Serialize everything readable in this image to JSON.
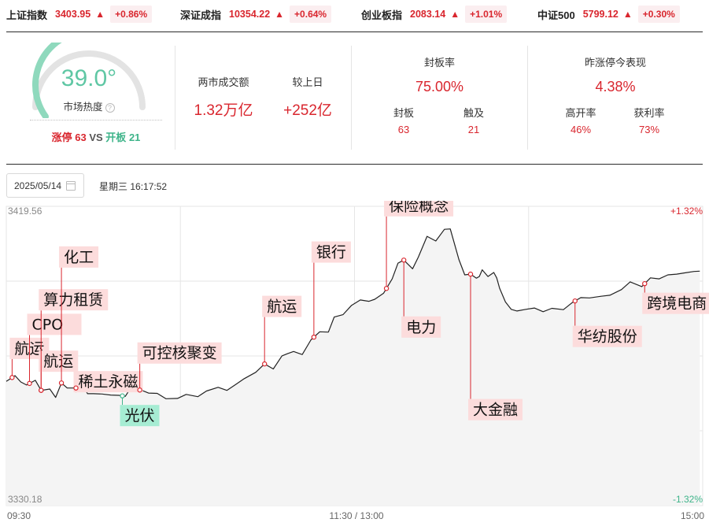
{
  "indices": [
    {
      "name": "上证指数",
      "price": "3403.95",
      "arrow": "▲",
      "change": "+0.86%"
    },
    {
      "name": "深证成指",
      "price": "10354.22",
      "arrow": "▲",
      "change": "+0.64%"
    },
    {
      "name": "创业板指",
      "price": "2083.14",
      "arrow": "▲",
      "change": "+1.01%"
    },
    {
      "name": "中证500",
      "price": "5799.12",
      "arrow": "▲",
      "change": "+0.30%"
    }
  ],
  "heat": {
    "value": "39.0°",
    "label": "市场热度",
    "info_icon": "?",
    "gauge_fraction": 0.39,
    "limit_up_label": "涨停",
    "limit_up_count": "63",
    "vs": "VS",
    "opened_label": "开板",
    "opened_count": "21"
  },
  "turnover": {
    "label": "两市成交额",
    "value": "1.32万亿",
    "diff_label": "较上日",
    "diff_value": "+252亿"
  },
  "seal_rate": {
    "label": "封板率",
    "value": "75.00%",
    "sealed_label": "封板",
    "sealed_value": "63",
    "touched_label": "触及",
    "touched_value": "21"
  },
  "yesterday_limit": {
    "label": "昨涨停今表现",
    "value": "4.38%",
    "high_open_label": "高开率",
    "high_open_value": "46%",
    "profit_label": "获利率",
    "profit_value": "73%"
  },
  "date_bar": {
    "date": "2025/05/14",
    "calendar_icon": "calendar-icon",
    "weekday": "星期三",
    "time": "16:17:52"
  },
  "colors": {
    "up": "#d9262e",
    "down": "#3fb48a",
    "line": "#222222",
    "gauge_active": "#8fd9bd",
    "gauge_track": "#e3e3e3"
  },
  "chart_data": {
    "type": "line",
    "ylim": [
      3330.18,
      3419.56
    ],
    "y_tick_labels": [
      "3419.56",
      "3330.18"
    ],
    "pct_tick_labels": [
      "+1.32%",
      "-1.32%"
    ],
    "x_tick_labels": [
      "09:30",
      "11:30 / 13:00",
      "15:00"
    ],
    "total_minutes": 240,
    "x_minutes": [
      0,
      3,
      5,
      7,
      10,
      12,
      15,
      17,
      19,
      21,
      24,
      26,
      28,
      30,
      33,
      36,
      39,
      41,
      43,
      45,
      47,
      49,
      52,
      55,
      59,
      62,
      66,
      69,
      73,
      76,
      79,
      82,
      86,
      89,
      92,
      95,
      97,
      99,
      102,
      105,
      108,
      111,
      113,
      116,
      119,
      122,
      125,
      127,
      130,
      133,
      135,
      137,
      140,
      142,
      145,
      148,
      151,
      153,
      156,
      158,
      160,
      162,
      163,
      164,
      166,
      168,
      169,
      170,
      172,
      174,
      176,
      179,
      182,
      185,
      188,
      192,
      195,
      198,
      201,
      205,
      208,
      212,
      215,
      219,
      222,
      225,
      228,
      231,
      234,
      237,
      239
    ],
    "y_values": [
      3367.3,
      3369,
      3367.1,
      3366.2,
      3367.6,
      3364.6,
      3365,
      3362.5,
      3366.8,
      3365.3,
      3365.3,
      3366.6,
      3363.6,
      3363.6,
      3363.5,
      3363.2,
      3363.1,
      3362.8,
      3365.5,
      3364.9,
      3364.5,
      3363.8,
      3363.7,
      3362.1,
      3362.2,
      3363.4,
      3362.7,
      3364.4,
      3365.5,
      3364.6,
      3366.3,
      3368.1,
      3370,
      3372.5,
      3371,
      3374.9,
      3375.6,
      3376.2,
      3375.3,
      3379.7,
      3382.1,
      3382,
      3386.5,
      3387.2,
      3390,
      3391.6,
      3391.2,
      3391.8,
      3393.6,
      3397.9,
      3402.6,
      3403.5,
      3400.9,
      3404.4,
      3410.6,
      3409.2,
      3412.7,
      3412.8,
      3403.6,
      3399.1,
      3399.3,
      3398.1,
      3398.6,
      3400.6,
      3398.6,
      3399.8,
      3398.2,
      3395.1,
      3391,
      3388.8,
      3388.3,
      3388.8,
      3389.2,
      3388.1,
      3389.1,
      3388.7,
      3390.8,
      3392.3,
      3392.2,
      3392.7,
      3393,
      3394.7,
      3397,
      3395.6,
      3398.2,
      3397.9,
      3399.1,
      3399.3,
      3399.7,
      3400.1,
      3400.2
    ],
    "annotations": [
      {
        "label": "航运",
        "minute": 2,
        "offset_y": -37,
        "kind": "up"
      },
      {
        "label": "CPO",
        "minute": 8,
        "offset_y": -75,
        "kind": "up"
      },
      {
        "label": "航运",
        "minute": 12,
        "offset_y": -37,
        "kind": "up"
      },
      {
        "label": "算力租赁",
        "minute": 12,
        "offset_y": -115,
        "kind": "up"
      },
      {
        "label": "化工",
        "minute": 19,
        "offset_y": -160,
        "kind": "up"
      },
      {
        "label": "稀土永磁",
        "minute": 24,
        "offset_y": -8,
        "kind": "up"
      },
      {
        "label": "光伏",
        "minute": 40,
        "offset_y": 25,
        "kind": "down"
      },
      {
        "label": "可控核聚变",
        "minute": 46,
        "offset_y": -47,
        "kind": "up"
      },
      {
        "label": "航运",
        "minute": 89,
        "offset_y": -73,
        "kind": "up"
      },
      {
        "label": "银行",
        "minute": 106,
        "offset_y": -108,
        "kind": "up"
      },
      {
        "label": "保险概念",
        "minute": 131,
        "offset_y": -105,
        "kind": "up"
      },
      {
        "label": "电力",
        "minute": 137,
        "offset_y": 85,
        "kind": "up"
      },
      {
        "label": "大金融",
        "minute": 160,
        "offset_y": 172,
        "kind": "up"
      },
      {
        "label": "华纺股份",
        "minute": 196,
        "offset_y": 45,
        "kind": "up"
      },
      {
        "label": "跨境电商",
        "minute": 220,
        "offset_y": 25,
        "kind": "up"
      }
    ]
  }
}
